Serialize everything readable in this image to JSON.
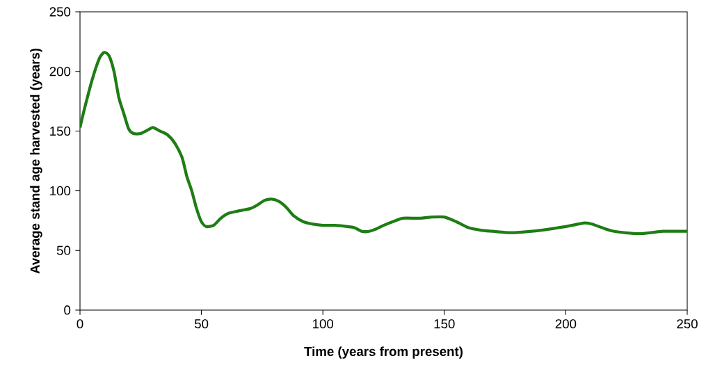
{
  "chart_data": {
    "type": "line",
    "xlabel": "Time (years from present)",
    "ylabel": "Average stand age harvested (years)",
    "x": [
      0,
      2,
      5,
      8,
      10,
      12,
      14,
      16,
      18,
      20,
      22,
      25,
      28,
      30,
      33,
      36,
      39,
      42,
      44,
      46,
      48,
      50,
      52,
      55,
      58,
      61,
      65,
      70,
      73,
      76,
      79,
      82,
      85,
      88,
      92,
      96,
      100,
      105,
      110,
      113,
      116,
      119,
      122,
      125,
      130,
      133,
      140,
      145,
      150,
      155,
      160,
      165,
      170,
      175,
      180,
      190,
      200,
      205,
      208,
      211,
      215,
      220,
      230,
      240,
      250
    ],
    "series": [
      {
        "color": "#1e7d14",
        "values": [
          153,
          170,
          193,
          211,
          216,
          213,
          200,
          178,
          165,
          152,
          148,
          148,
          151,
          153,
          150,
          147,
          140,
          128,
          112,
          100,
          85,
          74,
          70,
          71,
          77,
          81,
          83,
          85,
          88,
          92,
          93,
          91,
          86,
          79,
          74,
          72,
          71,
          71,
          70,
          69,
          66,
          66,
          68,
          71,
          75,
          77,
          77,
          78,
          78,
          74,
          69,
          67,
          66,
          65,
          65,
          67,
          70,
          72,
          73,
          72,
          69,
          66,
          64,
          66,
          66
        ]
      }
    ],
    "xlim": [
      0,
      250
    ],
    "ylim": [
      0,
      250
    ],
    "xticks": [
      0,
      50,
      100,
      150,
      200,
      250
    ],
    "yticks": [
      0,
      50,
      100,
      150,
      200,
      250
    ],
    "grid": false,
    "marker": "none",
    "line_style": "solid"
  }
}
